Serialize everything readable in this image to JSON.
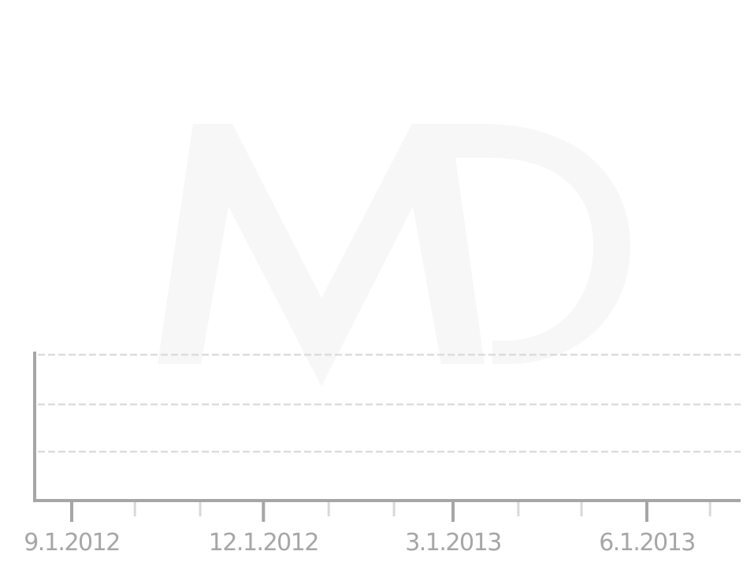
{
  "watermark": {
    "text": "MD",
    "color": "#f7f7f7"
  },
  "colors": {
    "axis": "#a6a6a6",
    "grid": "#dcdcdc",
    "minor_tick": "#d9d9d9",
    "label": "#a6a6a6"
  },
  "chart_data": {
    "type": "line",
    "title": "",
    "xlabel": "",
    "ylabel": "",
    "x_axis": {
      "scale": "time",
      "range": [
        "2012-08-21",
        "2013-07-29"
      ],
      "major_ticks": [
        {
          "date": "2012-09-01",
          "label": "9.1.2012"
        },
        {
          "date": "2012-12-01",
          "label": "12.1.2012"
        },
        {
          "date": "2013-03-01",
          "label": "3.1.2013"
        },
        {
          "date": "2013-06-01",
          "label": "6.1.2013"
        }
      ],
      "minor_ticks": [
        "2012-10-01",
        "2012-11-01",
        "2013-01-01",
        "2013-02-01",
        "2013-04-01",
        "2013-05-01",
        "2013-07-01"
      ]
    },
    "y_axis": {
      "tick_labels": []
    },
    "gridlines": 3,
    "grid": true,
    "legend": "none",
    "series": []
  }
}
